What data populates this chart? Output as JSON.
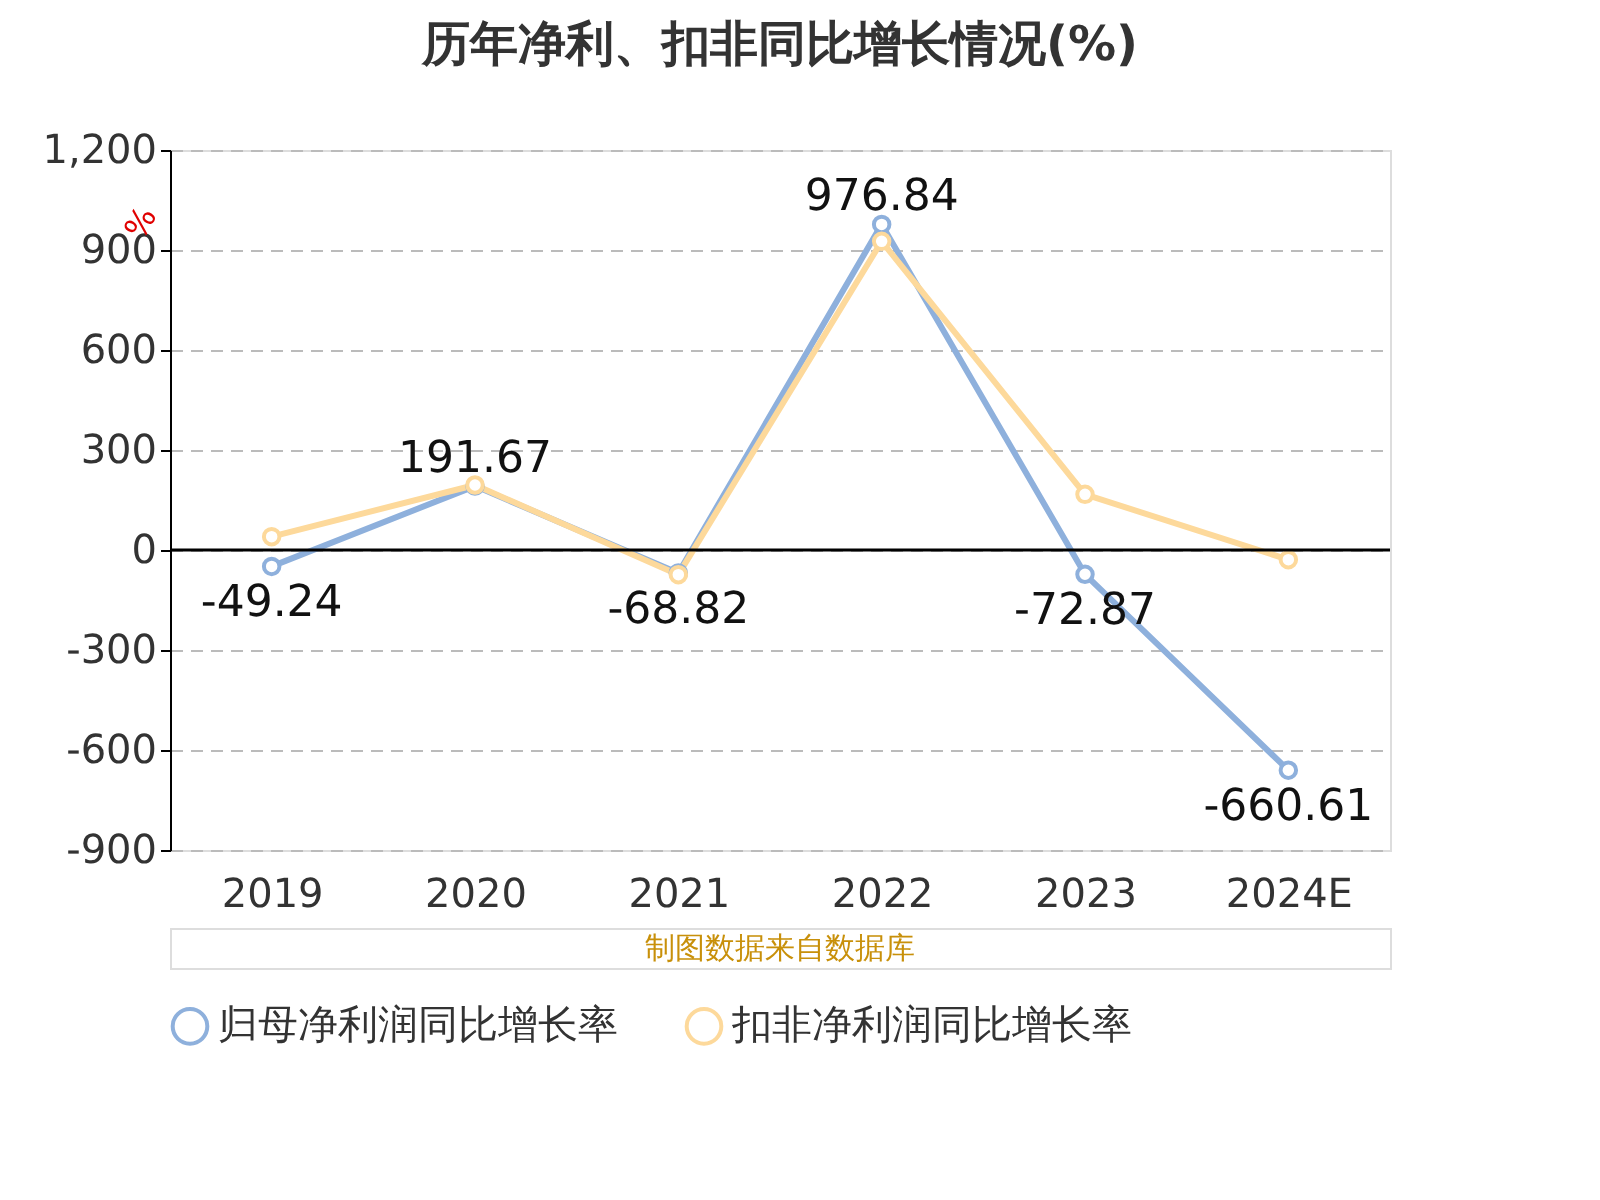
{
  "chart_data": {
    "type": "line",
    "title": "历年净利、扣非同比增长情况(%)",
    "ylabel": "%",
    "categories": [
      "2019",
      "2020",
      "2021",
      "2022",
      "2023",
      "2024E"
    ],
    "series": [
      {
        "name": "归母净利润同比增长率",
        "color": "#8eb0dc",
        "values": [
          -49.24,
          191.67,
          -68.82,
          976.84,
          -72.87,
          -660.61
        ],
        "value_labels": [
          "-49.24",
          "191.67",
          "-68.82",
          "976.84",
          "-72.87",
          "-660.61"
        ]
      },
      {
        "name": "扣非净利润同比增长率",
        "color": "#fdd99b",
        "values": [
          40,
          195,
          -74,
          926,
          167,
          -29
        ]
      }
    ],
    "ylim": [
      -900,
      1200
    ],
    "yticks": [
      {
        "value": -900,
        "label": "-900"
      },
      {
        "value": -600,
        "label": "-600"
      },
      {
        "value": -300,
        "label": "-300"
      },
      {
        "value": 0,
        "label": "0"
      },
      {
        "value": 300,
        "label": "300"
      },
      {
        "value": 600,
        "label": "600"
      },
      {
        "value": 900,
        "label": "900"
      },
      {
        "value": 1200,
        "label": "1,200"
      }
    ],
    "grid": "y",
    "legend": "bottom",
    "marker": "circle",
    "line_style": "solid",
    "annotations": [
      "制图数据来自数据库"
    ]
  }
}
